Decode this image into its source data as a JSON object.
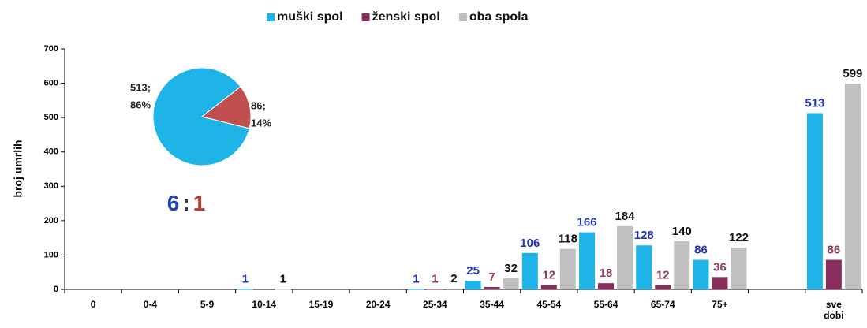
{
  "chart_data": [
    {
      "type": "bar",
      "y_label": "broj umrlih",
      "categories": [
        "0",
        "0-4",
        "5-9",
        "10-14",
        "15-19",
        "20-24",
        "25-34",
        "35-44",
        "45-54",
        "55-64",
        "65-74",
        "75+",
        null,
        "sve dobi"
      ],
      "series": [
        {
          "name": "muški spol",
          "color": "#1fb4e8",
          "label_color": "#2233bb",
          "values": [
            null,
            null,
            null,
            1,
            null,
            null,
            1,
            25,
            106,
            166,
            128,
            86,
            null,
            513
          ]
        },
        {
          "name": "ženski spol",
          "color": "#8b2e5f",
          "label_color": "#8b3a62",
          "values": [
            null,
            null,
            null,
            null,
            null,
            null,
            1,
            7,
            12,
            18,
            12,
            36,
            null,
            86
          ]
        },
        {
          "name": "oba spola",
          "color": "#c0c0c0",
          "label_color": "#111111",
          "values": [
            null,
            null,
            null,
            1,
            null,
            null,
            2,
            32,
            118,
            184,
            140,
            122,
            null,
            599
          ]
        }
      ],
      "ylim": [
        0,
        700
      ],
      "yticks": [
        0,
        100,
        200,
        300,
        400,
        500,
        600,
        700
      ],
      "legend": "top"
    },
    {
      "type": "pie",
      "values": [
        513,
        86
      ],
      "colors": [
        "#1fb4e8",
        "#c0504d"
      ],
      "value_labels": [
        "513;",
        "86;"
      ],
      "percent_labels": [
        "86%",
        "14%"
      ],
      "annotation": [
        {
          "text": "6",
          "color": "#2244bb"
        },
        {
          "text": ":",
          "color": "#333333"
        },
        {
          "text": "1",
          "color": "#c0392b"
        }
      ]
    }
  ]
}
